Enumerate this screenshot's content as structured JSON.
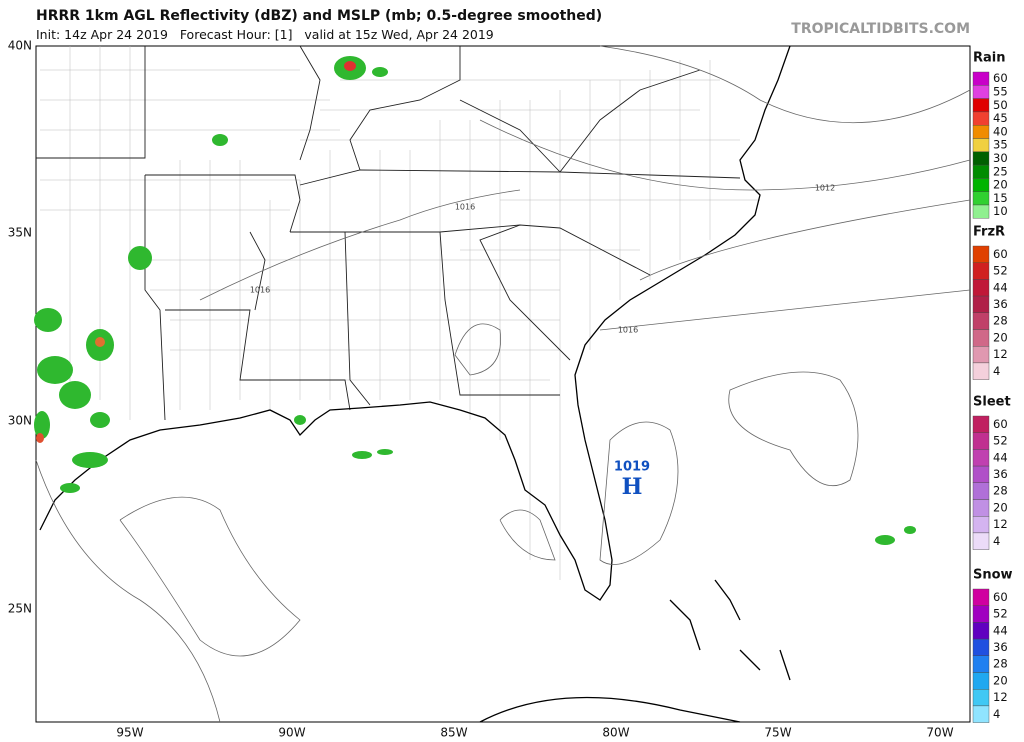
{
  "header": {
    "title": "HRRR 1km AGL Reflectivity (dBZ) and MSLP (mb; 0.5-degree smoothed)",
    "subtitle": "Init: 14z Apr 24 2019   Forecast Hour: [1]   valid at 15z Wed, Apr 24 2019",
    "credit": "TROPICALTIDBITS.COM"
  },
  "map": {
    "lat_labels": [
      "40N",
      "35N",
      "30N",
      "25N"
    ],
    "lon_labels": [
      "95W",
      "90W",
      "85W",
      "80W",
      "75W",
      "70W"
    ],
    "isobar_labels": [
      "1012",
      "1016",
      "1016",
      "1016"
    ],
    "high": {
      "pressure": "1019",
      "label": "H"
    }
  },
  "legends": [
    {
      "title": "Rain",
      "labels": [
        "60",
        "55",
        "50",
        "45",
        "40",
        "35",
        "30",
        "25",
        "20",
        "15",
        "10"
      ],
      "colors": [
        "#c800c8",
        "#e040e0",
        "#e00000",
        "#f04030",
        "#f08c00",
        "#f0d040",
        "#006000",
        "#008c00",
        "#00b400",
        "#30d030",
        "#90f090"
      ]
    },
    {
      "title": "FrzR",
      "labels": [
        "60",
        "52",
        "44",
        "36",
        "28",
        "20",
        "12",
        "4"
      ],
      "colors": [
        "#e04000",
        "#d02020",
        "#c01838",
        "#b02048",
        "#c04068",
        "#d06888",
        "#e098b0",
        "#f4d0dc"
      ]
    },
    {
      "title": "Sleet",
      "labels": [
        "60",
        "52",
        "44",
        "36",
        "28",
        "20",
        "12",
        "4"
      ],
      "colors": [
        "#c02060",
        "#c03090",
        "#c040b0",
        "#b050c8",
        "#b070d8",
        "#c090e4",
        "#d4b4f0",
        "#ecdcf8"
      ]
    },
    {
      "title": "Snow",
      "labels": [
        "60",
        "52",
        "44",
        "36",
        "28",
        "20",
        "12",
        "4"
      ],
      "colors": [
        "#d000a0",
        "#a000c0",
        "#6000c0",
        "#2050e0",
        "#2080f0",
        "#20a8f0",
        "#40c8f4",
        "#90e4ff"
      ]
    }
  ]
}
